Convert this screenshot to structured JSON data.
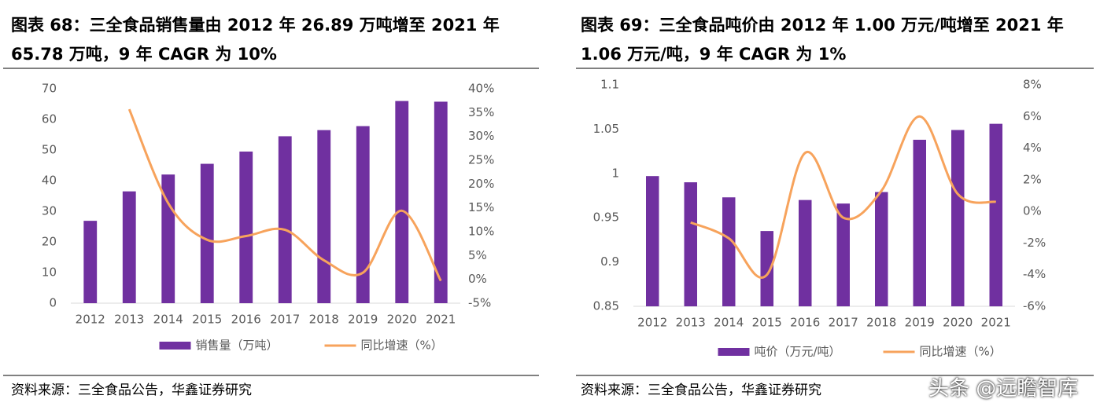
{
  "chart_data": [
    {
      "type": "combo",
      "title": "图表 68：三全食品销售量由 2012 年 26.89 万吨增至 2021 年 65.78 万吨，9 年 CAGR 为 10%",
      "categories": [
        "2012",
        "2013",
        "2014",
        "2015",
        "2016",
        "2017",
        "2018",
        "2019",
        "2020",
        "2021"
      ],
      "series": [
        {
          "name": "销售量（万吨）",
          "type": "bar",
          "color": "#7030a0",
          "values": [
            26.89,
            36.5,
            42,
            45.5,
            49.5,
            54.5,
            56.5,
            57.8,
            66,
            65.78
          ]
        },
        {
          "name": "同比增速（%）",
          "type": "line",
          "axis": "y2",
          "color": "#f7a35c",
          "values": [
            null,
            35.7,
            16,
            8.3,
            9.1,
            10.4,
            4,
            1.4,
            14.4,
            -0.3
          ]
        }
      ],
      "ylim": [
        0,
        70
      ],
      "yticks": [
        0,
        10,
        20,
        30,
        40,
        50,
        60,
        70
      ],
      "y2lim": [
        -5,
        40
      ],
      "y2ticks": [
        {
          "value": -5,
          "label": "-5%"
        },
        {
          "value": 0,
          "label": "0%"
        },
        {
          "value": 5,
          "label": "5%"
        },
        {
          "value": 10,
          "label": "10%"
        },
        {
          "value": 15,
          "label": "15%"
        },
        {
          "value": 20,
          "label": "20%"
        },
        {
          "value": 25,
          "label": "25%"
        },
        {
          "value": 30,
          "label": "30%"
        },
        {
          "value": 35,
          "label": "35%"
        },
        {
          "value": 40,
          "label": "40%"
        }
      ],
      "source": "资料来源：三全食品公告，华鑫证券研究"
    },
    {
      "type": "combo",
      "title": "图表 69：三全食品吨价由 2012 年 1.00 万元/吨增至 2021 年 1.06 万元/吨，9 年 CAGR 为 1%",
      "categories": [
        "2012",
        "2013",
        "2014",
        "2015",
        "2016",
        "2017",
        "2018",
        "2019",
        "2020",
        "2021"
      ],
      "series": [
        {
          "name": "吨价（万元/吨）",
          "type": "bar",
          "color": "#7030a0",
          "values": [
            0.997,
            0.99,
            0.973,
            0.935,
            0.97,
            0.966,
            0.979,
            1.038,
            1.049,
            1.056
          ]
        },
        {
          "name": "同比增速（%）",
          "type": "line",
          "axis": "y2",
          "color": "#f7a35c",
          "values": [
            null,
            -0.7,
            -1.7,
            -4,
            3.7,
            -0.4,
            1.3,
            6,
            1.1,
            0.6
          ]
        }
      ],
      "ylim": [
        0.85,
        1.1
      ],
      "yticks": [
        0.85,
        0.9,
        0.95,
        1,
        1.05,
        1.1
      ],
      "y2lim": [
        -6,
        8
      ],
      "y2ticks": [
        {
          "value": -6,
          "label": "-6%"
        },
        {
          "value": -4,
          "label": "-4%"
        },
        {
          "value": -2,
          "label": "-2%"
        },
        {
          "value": 0,
          "label": "0%"
        },
        {
          "value": 2,
          "label": "2%"
        },
        {
          "value": 4,
          "label": "4%"
        },
        {
          "value": 6,
          "label": "6%"
        },
        {
          "value": 8,
          "label": "8%"
        }
      ],
      "source": "资料来源：三全食品公告，华鑫证券研究"
    }
  ],
  "watermark": "头条 @远瞻智库"
}
